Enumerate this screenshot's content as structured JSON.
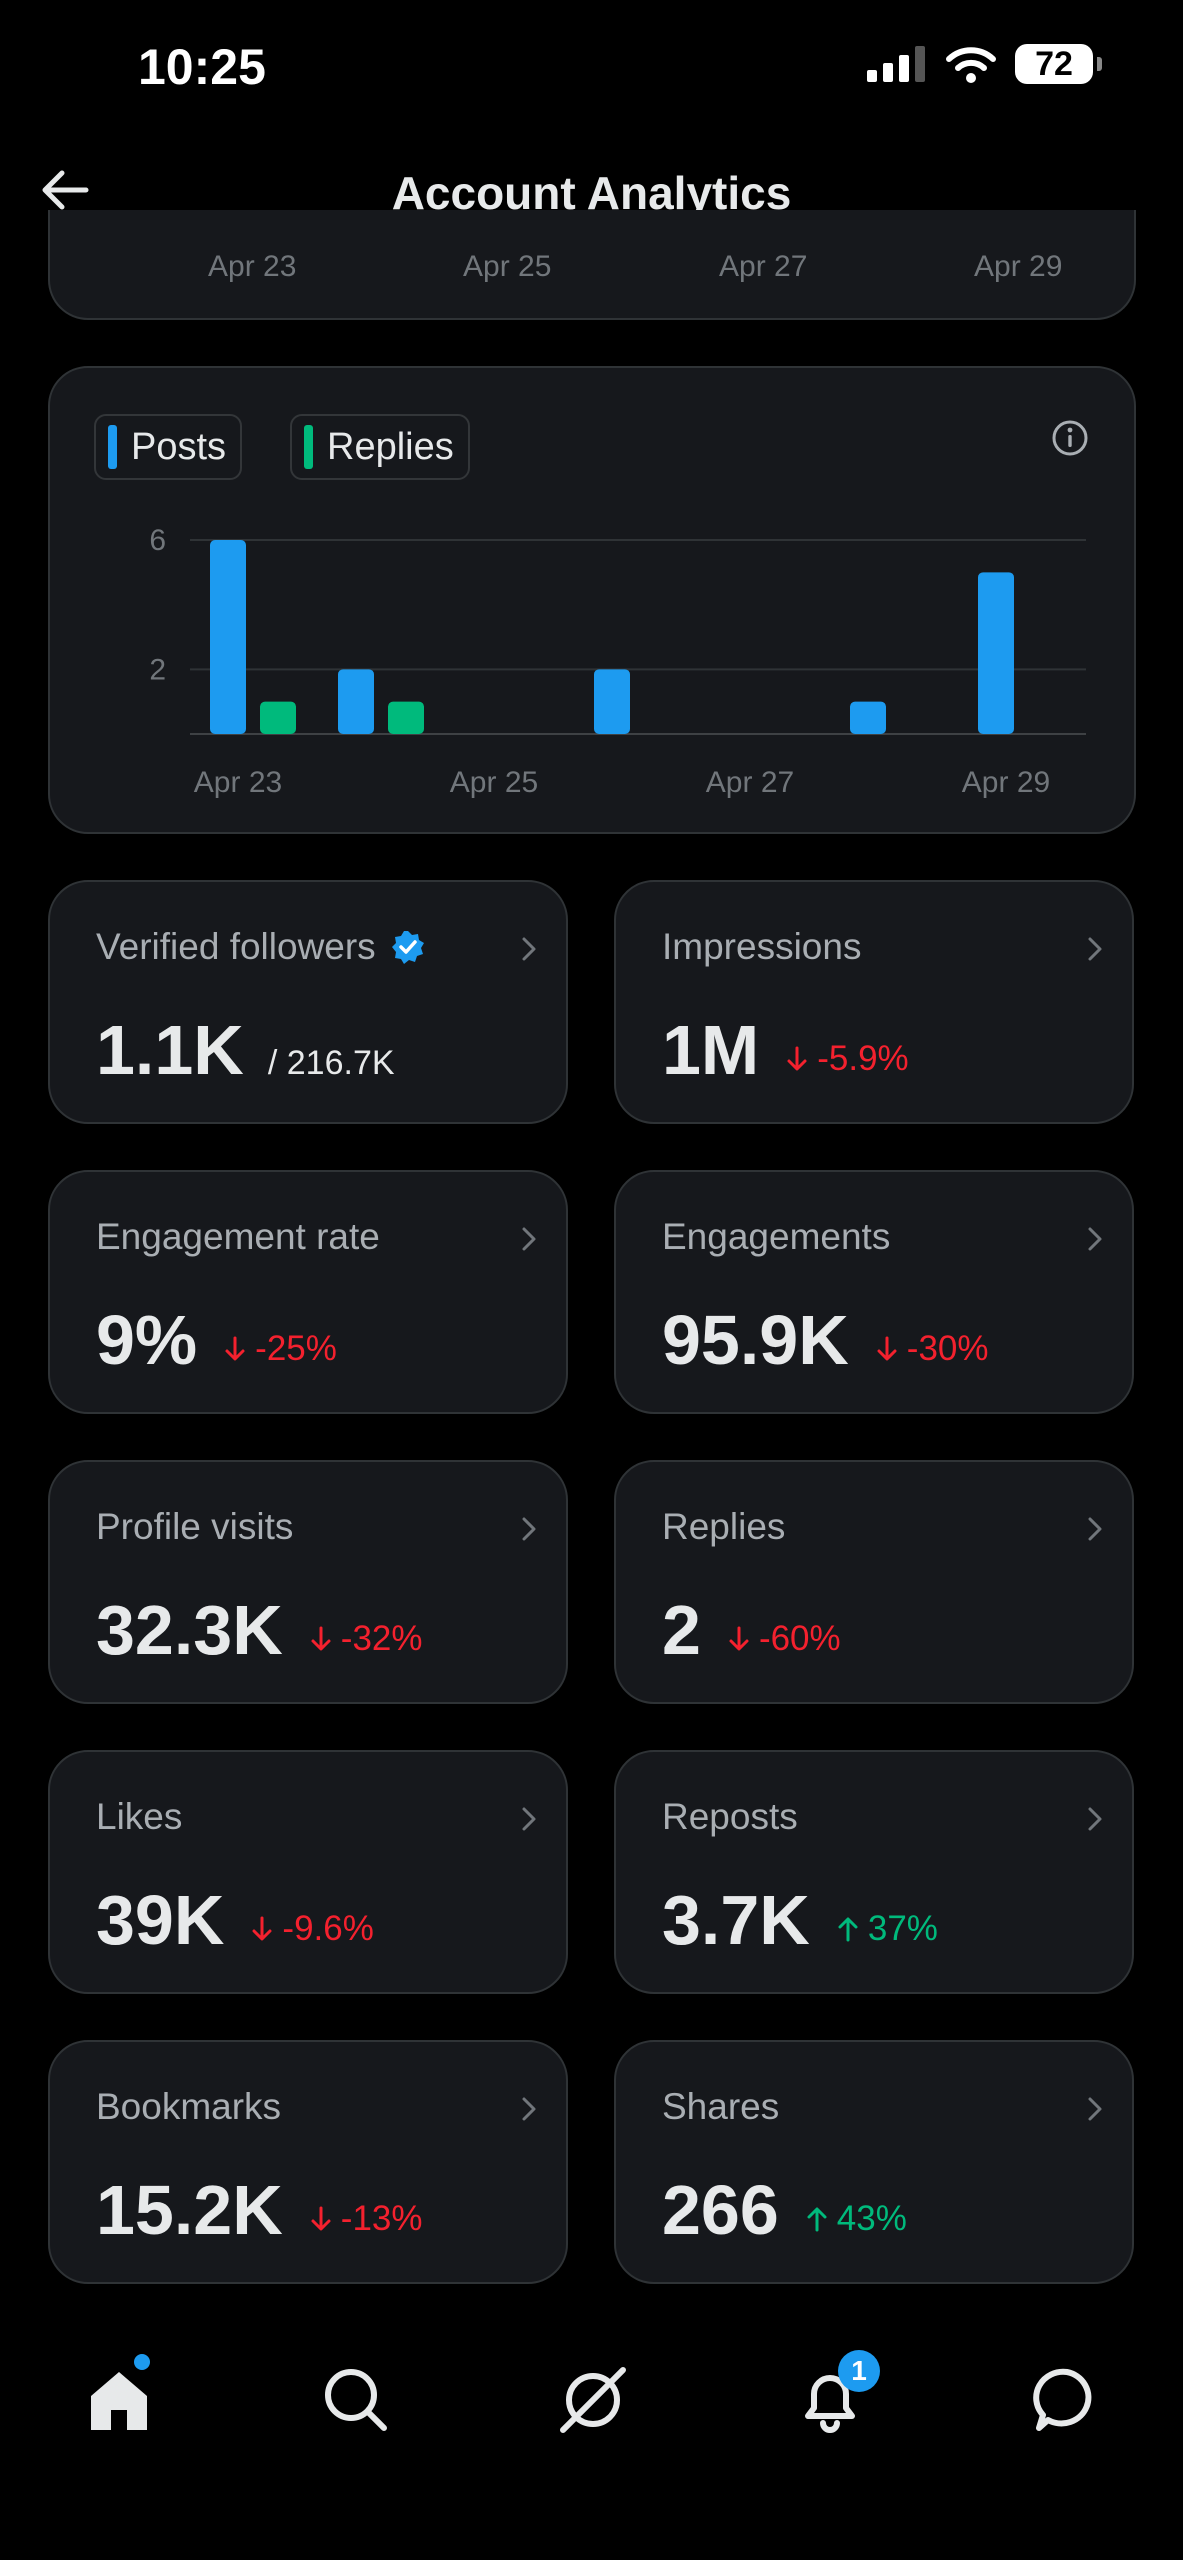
{
  "status_bar": {
    "time": "10:25",
    "battery": "72"
  },
  "header": {
    "title": "Account Analytics"
  },
  "top_chart": {
    "x_ticks": [
      "Apr 23",
      "Apr 25",
      "Apr 27",
      "Apr 29"
    ]
  },
  "chart_data": {
    "type": "bar",
    "categories": [
      "Apr 23",
      "Apr 24",
      "Apr 25",
      "Apr 26",
      "Apr 27",
      "Apr 28",
      "Apr 29"
    ],
    "x_ticks": [
      "Apr 23",
      "Apr 25",
      "Apr 27",
      "Apr 29"
    ],
    "y_ticks": [
      2,
      6
    ],
    "ylim": [
      0,
      6
    ],
    "grid": true,
    "legend_position": "top-left",
    "series": [
      {
        "name": "Posts",
        "color": "#1d9bf0",
        "values": [
          6,
          2,
          0,
          2,
          0,
          1,
          5
        ]
      },
      {
        "name": "Replies",
        "color": "#00ba7c",
        "values": [
          1,
          1,
          0,
          0,
          0,
          0,
          0
        ]
      }
    ]
  },
  "stats": [
    {
      "label": "Verified followers",
      "value": "1.1K",
      "sub": "/ 216.7K",
      "verified": true
    },
    {
      "label": "Impressions",
      "value": "1M",
      "change": "-5.9%",
      "dir": "down"
    },
    {
      "label": "Engagement rate",
      "value": "9%",
      "change": "-25%",
      "dir": "down"
    },
    {
      "label": "Engagements",
      "value": "95.9K",
      "change": "-30%",
      "dir": "down"
    },
    {
      "label": "Profile visits",
      "value": "32.3K",
      "change": "-32%",
      "dir": "down"
    },
    {
      "label": "Replies",
      "value": "2",
      "change": "-60%",
      "dir": "down"
    },
    {
      "label": "Likes",
      "value": "39K",
      "change": "-9.6%",
      "dir": "down"
    },
    {
      "label": "Reposts",
      "value": "3.7K",
      "change": "37%",
      "dir": "up"
    },
    {
      "label": "Bookmarks",
      "value": "15.2K",
      "change": "-13%",
      "dir": "down"
    },
    {
      "label": "Shares",
      "value": "266",
      "change": "43%",
      "dir": "up"
    }
  ],
  "nav": {
    "items": [
      "home-icon",
      "search-icon",
      "grok-icon",
      "bell-icon",
      "messages-icon"
    ],
    "notifications_badge": "1",
    "accent": "#1d9bf0"
  }
}
